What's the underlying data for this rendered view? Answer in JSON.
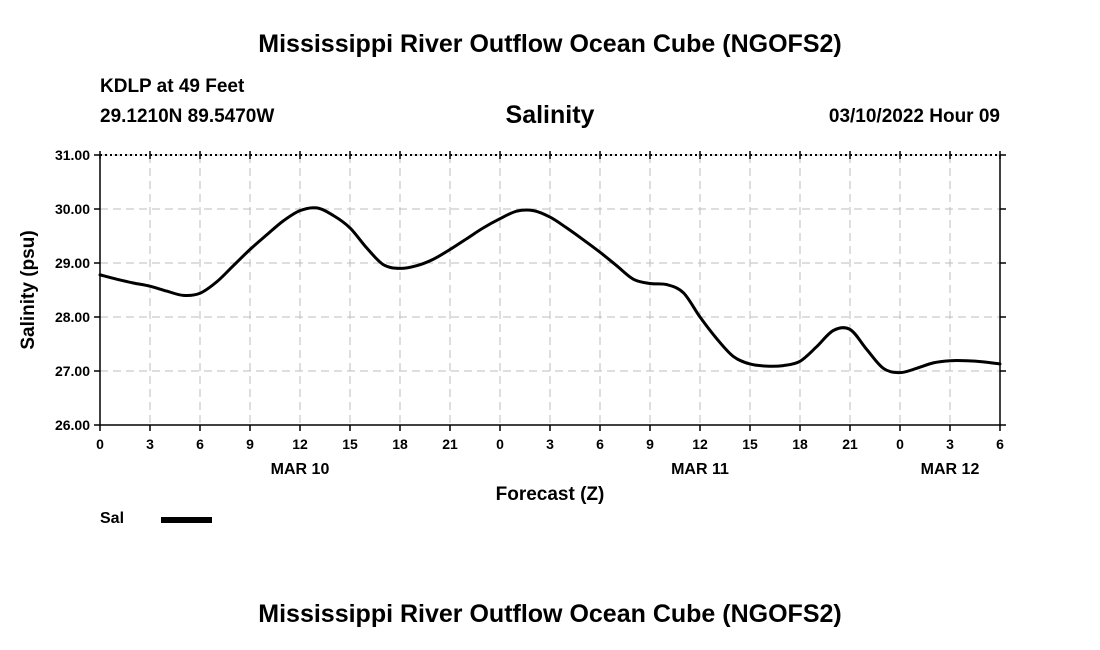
{
  "header": {
    "title": "Mississippi River Outflow Ocean Cube (NGOFS2)",
    "station": "KDLP at 49 Feet",
    "coords": "29.1210N  89.5470W",
    "subtitle": "Salinity",
    "datetime": "03/10/2022 Hour 09"
  },
  "footer": {
    "title": "Mississippi River Outflow Ocean Cube (NGOFS2)"
  },
  "legend": {
    "label": "Sal",
    "color": "#000000"
  },
  "chart_data": {
    "type": "line",
    "title": "Salinity",
    "xlabel": "Forecast (Z)",
    "ylabel": "Salinity (psu)",
    "xlim": [
      0,
      54
    ],
    "ylim": [
      26,
      31
    ],
    "yticks": [
      26,
      27,
      28,
      29,
      30,
      31
    ],
    "ytick_labels": [
      "26.00",
      "27.00",
      "28.00",
      "29.00",
      "30.00",
      "31.00"
    ],
    "xticks": [
      0,
      3,
      6,
      9,
      12,
      15,
      18,
      21,
      24,
      27,
      30,
      33,
      36,
      39,
      42,
      45,
      48,
      51,
      54
    ],
    "xtick_labels": [
      "0",
      "3",
      "6",
      "9",
      "12",
      "15",
      "18",
      "21",
      "0",
      "3",
      "6",
      "9",
      "12",
      "15",
      "18",
      "21",
      "0",
      "3",
      "6"
    ],
    "date_labels": [
      {
        "x": 12,
        "label": "MAR 10"
      },
      {
        "x": 36,
        "label": "MAR 11"
      },
      {
        "x": 51,
        "label": "MAR 12"
      }
    ],
    "grid": true,
    "series": [
      {
        "name": "Sal",
        "color": "#000000",
        "x": [
          0,
          1,
          2,
          3,
          4,
          5,
          6,
          7,
          8,
          9,
          10,
          11,
          12,
          13,
          14,
          15,
          16,
          17,
          18,
          19,
          20,
          21,
          22,
          23,
          24,
          25,
          26,
          27,
          28,
          29,
          30,
          31,
          32,
          33,
          34,
          35,
          36,
          37,
          38,
          39,
          40,
          41,
          42,
          43,
          44,
          45,
          46,
          47,
          48,
          49,
          50,
          51,
          52,
          53,
          54
        ],
        "values": [
          28.78,
          28.7,
          28.63,
          28.57,
          28.48,
          28.4,
          28.44,
          28.65,
          28.95,
          29.25,
          29.52,
          29.78,
          29.97,
          30.02,
          29.88,
          29.65,
          29.28,
          28.97,
          28.9,
          28.95,
          29.07,
          29.25,
          29.45,
          29.65,
          29.82,
          29.96,
          29.97,
          29.85,
          29.65,
          29.43,
          29.2,
          28.95,
          28.7,
          28.62,
          28.6,
          28.45,
          28.0,
          27.6,
          27.27,
          27.13,
          27.09,
          27.1,
          27.18,
          27.45,
          27.75,
          27.77,
          27.4,
          27.05,
          26.97,
          27.05,
          27.15,
          27.19,
          27.19,
          27.17,
          27.13
        ]
      }
    ]
  }
}
